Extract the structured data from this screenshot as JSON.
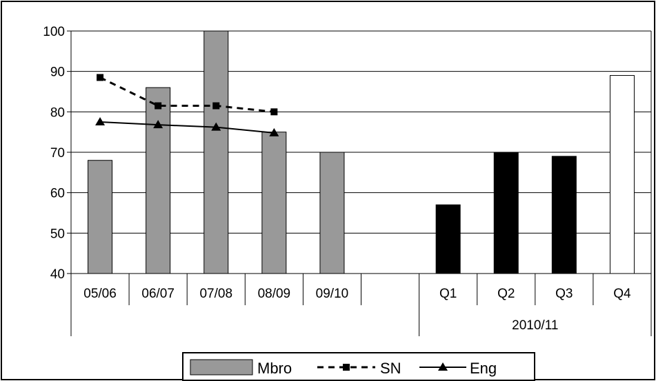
{
  "chart_data": {
    "type": "bar",
    "ylim": [
      40,
      100
    ],
    "yticks": [
      40,
      50,
      60,
      70,
      80,
      90,
      100
    ],
    "grid": true,
    "legend_position": "bottom",
    "categories": [
      "05/06",
      "06/07",
      "07/08",
      "08/09",
      "09/10",
      "",
      "Q1",
      "Q2",
      "Q3",
      "Q4"
    ],
    "group_labels": [
      {
        "label": "",
        "from": 0,
        "to": 5
      },
      {
        "label": "2010/11",
        "from": 6,
        "to": 9
      }
    ],
    "bars": [
      68,
      86,
      100,
      75,
      70,
      null,
      57,
      70,
      69,
      89
    ],
    "bar_colors": [
      "#999999",
      "#999999",
      "#999999",
      "#999999",
      "#999999",
      null,
      "#000000",
      "#000000",
      "#000000",
      "#ffffff"
    ],
    "series": [
      {
        "name": "Mbro",
        "kind": "bar"
      },
      {
        "name": "SN",
        "kind": "line",
        "style": "dashed",
        "marker": "square",
        "values": [
          88.5,
          81.5,
          81.5,
          80,
          null,
          null,
          null,
          null,
          null,
          null
        ]
      },
      {
        "name": "Eng",
        "kind": "line",
        "style": "solid",
        "marker": "triangle",
        "values": [
          77.5,
          76.8,
          76.2,
          74.8,
          null,
          null,
          null,
          null,
          null,
          null
        ]
      }
    ]
  }
}
